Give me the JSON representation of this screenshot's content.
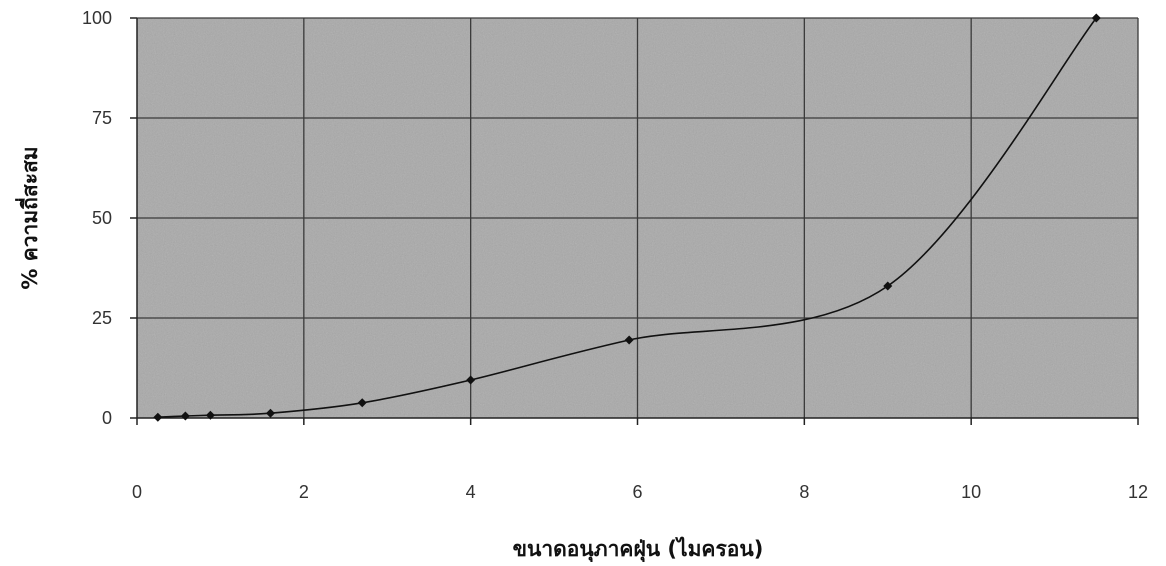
{
  "chart_data": {
    "type": "line",
    "title": "",
    "xlabel": "ขนาดอนุภาคฝุ่น (ไมครอน)",
    "ylabel": "% ความถี่สะสม",
    "xlim": [
      0,
      12
    ],
    "ylim": [
      0,
      100
    ],
    "x_ticks": [
      0,
      2,
      4,
      6,
      8,
      10,
      12
    ],
    "y_ticks": [
      0,
      25,
      50,
      75,
      100
    ],
    "grid": true,
    "legend": "none",
    "series": [
      {
        "x": [
          0.25,
          0.58,
          0.88,
          1.6,
          2.7,
          4.0,
          5.9,
          9.0,
          11.5
        ],
        "y": [
          0.2,
          0.5,
          0.7,
          1.2,
          3.8,
          9.5,
          19.5,
          33.0,
          100
        ]
      }
    ],
    "colors": {
      "plot_background": "#a9a9a9",
      "grid": "#3a3a3a",
      "line": "#111111",
      "marker": "#111111"
    }
  }
}
